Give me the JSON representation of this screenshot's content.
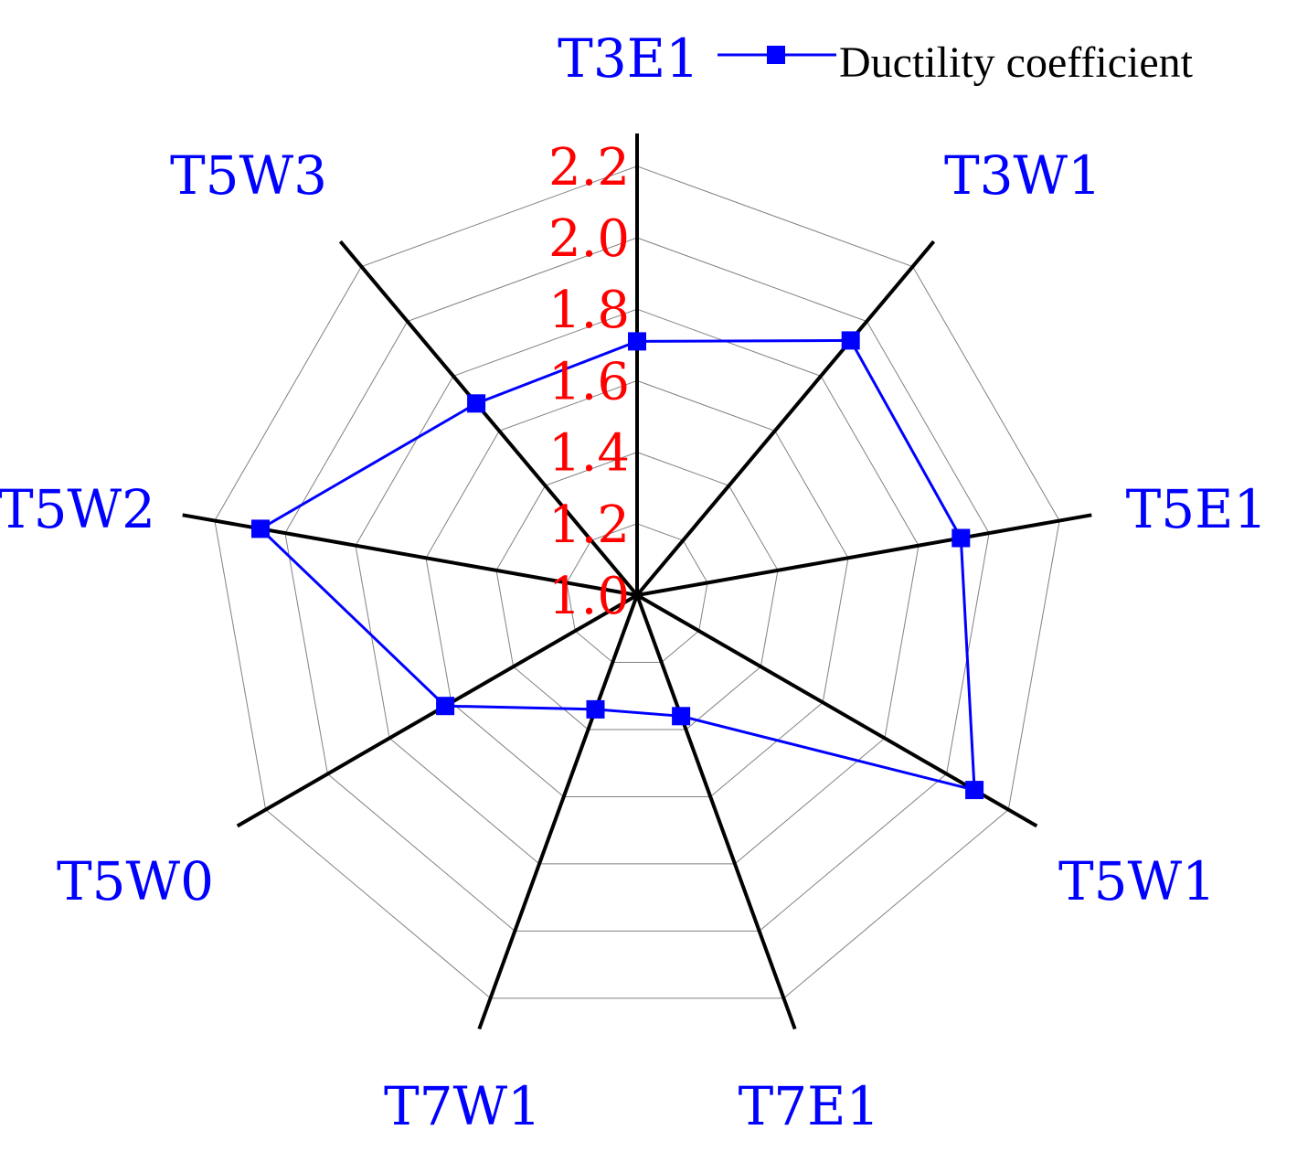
{
  "chart_data": {
    "type": "radar",
    "categories": [
      "T3E1",
      "T3W1",
      "T5E1",
      "T5W1",
      "T7E1",
      "T7W1",
      "T5W0",
      "T5W2",
      "T5W3"
    ],
    "series": [
      {
        "name": "Ductility coefficient",
        "values": [
          1.71,
          1.93,
          1.92,
          2.09,
          1.36,
          1.34,
          1.62,
          2.07,
          1.7
        ],
        "color": "#0000ff",
        "marker": "square"
      }
    ],
    "rlim": [
      1.0,
      2.3
    ],
    "ticks": [
      1.0,
      1.2,
      1.4,
      1.6,
      1.8,
      2.0,
      2.2
    ],
    "tick_labels": [
      "1.0",
      "1.2",
      "1.4",
      "1.6",
      "1.8",
      "2.0",
      "2.2"
    ],
    "grid": true,
    "legend": "top-right",
    "colors": {
      "category_label": "#0000ff",
      "tick_label": "#ff0000",
      "axis": "#000000",
      "grid": "#808080"
    }
  }
}
